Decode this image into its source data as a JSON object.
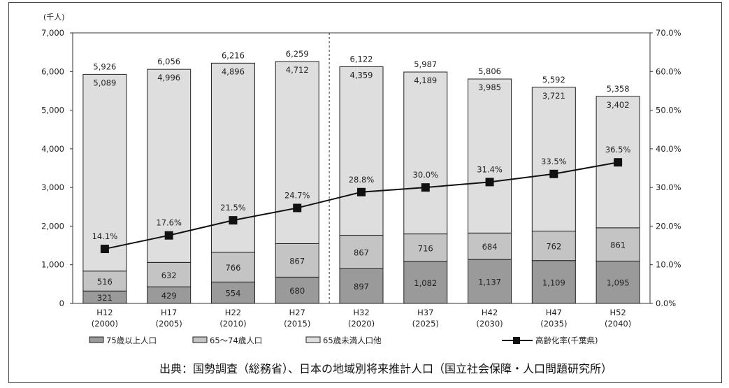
{
  "chart_data": {
    "type": "bar",
    "stacked": true,
    "unit_label": "(千人)",
    "categories": [
      "H12",
      "H17",
      "H22",
      "H27",
      "H32",
      "H37",
      "H42",
      "H47",
      "H52"
    ],
    "category_years": [
      "(2000)",
      "(2005)",
      "(2010)",
      "(2015)",
      "(2020)",
      "(2025)",
      "(2030)",
      "(2035)",
      "(2040)"
    ],
    "series": [
      {
        "name": "75歳以上人口",
        "color": "#9a9a9a",
        "values": [
          321,
          429,
          554,
          680,
          897,
          1082,
          1137,
          1109,
          1095
        ]
      },
      {
        "name": "65～74歳人口",
        "color": "#c4c4c4",
        "values": [
          516,
          632,
          766,
          867,
          867,
          716,
          684,
          762,
          861
        ]
      },
      {
        "name": "65歳未満人口他",
        "color": "#dedede",
        "values": [
          5089,
          4996,
          4896,
          4712,
          4359,
          4189,
          3985,
          3721,
          3402
        ]
      }
    ],
    "totals": [
      5926,
      6056,
      6216,
      6259,
      6122,
      5987,
      5806,
      5592,
      5358
    ],
    "line_series": {
      "name": "高齢化率(千葉県)",
      "axis": "right",
      "values": [
        14.1,
        17.6,
        21.5,
        24.7,
        28.8,
        30.0,
        31.4,
        33.5,
        36.5
      ]
    },
    "y_left": {
      "min": 0,
      "max": 7000,
      "ticks": [
        "0",
        "1,000",
        "2,000",
        "3,000",
        "4,000",
        "5,000",
        "6,000",
        "7,000"
      ]
    },
    "y_right": {
      "min": 0,
      "max": 70,
      "ticks": [
        "0.0%",
        "10.0%",
        "20.0%",
        "30.0%",
        "40.0%",
        "50.0%",
        "60.0%",
        "70.0%"
      ]
    },
    "legend_position": "bottom",
    "projection_divider_after_index": 3
  },
  "source_text": "出典：国勢調査（総務省）、日本の地域別将来推計人口（国立社会保障・人口問題研究所）"
}
